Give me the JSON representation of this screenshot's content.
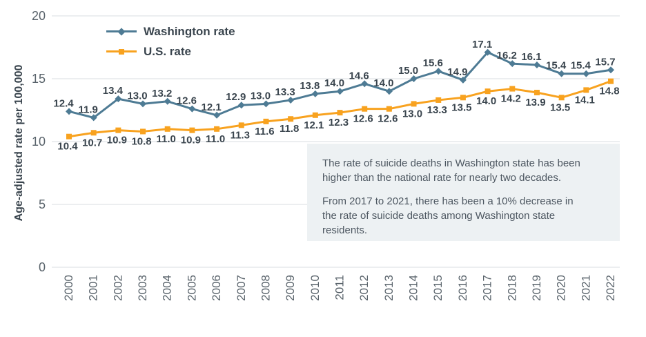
{
  "chart_data": {
    "type": "line",
    "title": "",
    "ylabel": "Age-adjusted rate per 100,000",
    "xlabel": "",
    "x": [
      "2000",
      "2001",
      "2002",
      "2003",
      "2004",
      "2005",
      "2006",
      "2007",
      "2008",
      "2009",
      "2010",
      "2011",
      "2012",
      "2013",
      "2014",
      "2015",
      "2016",
      "2017",
      "2018",
      "2019",
      "2020",
      "2021",
      "2022"
    ],
    "series": [
      {
        "name": "Washington rate",
        "color": "#4e7b94",
        "marker": "diamond",
        "label_position": "above",
        "values": [
          12.4,
          11.9,
          13.4,
          13.0,
          13.2,
          12.6,
          12.1,
          12.9,
          13.0,
          13.3,
          13.8,
          14.0,
          14.6,
          14.0,
          15.0,
          15.6,
          14.9,
          17.1,
          16.2,
          16.1,
          15.4,
          15.4,
          15.7
        ]
      },
      {
        "name": "U.S. rate",
        "color": "#f8a21f",
        "marker": "square",
        "label_position": "below",
        "values": [
          10.4,
          10.7,
          10.9,
          10.8,
          11.0,
          10.9,
          11.0,
          11.3,
          11.6,
          11.8,
          12.1,
          12.3,
          12.6,
          12.6,
          13.0,
          13.3,
          13.5,
          14.0,
          14.2,
          13.9,
          13.5,
          14.1,
          14.8
        ]
      }
    ],
    "ylim": [
      0,
      20
    ],
    "yticks": [
      0,
      5,
      10,
      15,
      20
    ],
    "grid": "horizontal",
    "legend_position": "top-left"
  },
  "annotation": {
    "para1": "The rate of suicide deaths in Washington state has been\nhigher than the national rate for nearly two decades.",
    "para2": "From 2017 to 2021, there has been a 10% decrease in\nthe rate of suicide deaths among Washington state\nresidents."
  },
  "colors": {
    "washington_line": "#4e7b94",
    "us_line": "#f8a21f",
    "grid_line": "#d9dde0",
    "axis_text": "#59636b",
    "data_label_text": "#3a454e",
    "annotation_bg": "#edf1f3",
    "annotation_text": "#4d5761"
  }
}
